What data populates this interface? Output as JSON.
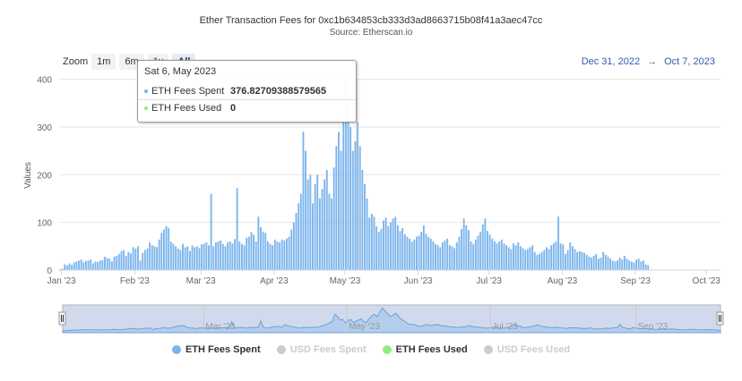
{
  "chart_data": {
    "type": "bar",
    "title": "Ether Transaction Fees for 0xc1b634853cb333d3ad8663715b08f41a3aec47cc",
    "subtitle": "Source: Etherscan.io",
    "ylabel": "Values",
    "ylim": [
      0,
      420
    ],
    "yticks": [
      "0",
      "100",
      "200",
      "300",
      "400"
    ],
    "xticks": [
      "Jan '23",
      "Feb '23",
      "Mar '23",
      "Apr '23",
      "May '23",
      "Jun '23",
      "Jul '23",
      "Aug '23",
      "Sep '23",
      "Oct '23"
    ],
    "x_start": "2022-12-31",
    "x_end": "2023-10-07",
    "bar_color": "#7cb5ec",
    "series": [
      {
        "name": "ETH Fees Spent",
        "values": [
          2,
          3,
          12,
          10,
          14,
          11,
          16,
          18,
          20,
          22,
          16,
          19,
          20,
          22,
          14,
          18,
          17,
          20,
          21,
          28,
          25,
          24,
          18,
          28,
          30,
          34,
          40,
          42,
          30,
          38,
          35,
          48,
          45,
          50,
          20,
          36,
          42,
          45,
          58,
          52,
          50,
          48,
          64,
          78,
          85,
          92,
          88,
          60,
          55,
          50,
          45,
          42,
          55,
          48,
          50,
          40,
          52,
          48,
          50,
          46,
          54,
          55,
          58,
          52,
          160,
          50,
          58,
          60,
          62,
          55,
          50,
          58,
          60,
          56,
          65,
          172,
          60,
          55,
          52,
          68,
          70,
          80,
          74,
          60,
          112,
          90,
          80,
          78,
          60,
          55,
          52,
          64,
          60,
          58,
          64,
          62,
          66,
          70,
          85,
          100,
          120,
          140,
          160,
          290,
          250,
          190,
          200,
          140,
          180,
          200,
          150,
          170,
          190,
          210,
          160,
          150,
          215,
          260,
          290,
          250,
          320,
          400,
          350,
          300,
          250,
          270,
          310,
          260,
          210,
          180,
          150,
          110,
          118,
          112,
          92,
          80,
          86,
          104,
          110,
          92,
          100,
          108,
          112,
          94,
          82,
          88,
          75,
          70,
          66,
          60,
          64,
          70,
          72,
          80,
          94,
          76,
          70,
          66,
          60,
          55,
          52,
          48,
          58,
          62,
          66,
          52,
          50,
          46,
          58,
          70,
          86,
          108,
          94,
          84,
          60,
          55,
          64,
          72,
          80,
          96,
          108,
          82,
          74,
          66,
          60,
          56,
          60,
          64,
          56,
          52,
          48,
          44,
          56,
          52,
          58,
          50,
          46,
          42,
          44,
          48,
          52,
          38,
          32,
          34,
          38,
          42,
          48,
          44,
          52,
          56,
          60,
          112,
          56,
          54,
          34,
          42,
          58,
          50,
          44,
          38,
          40,
          38,
          36,
          32,
          28,
          26,
          30,
          34,
          24,
          26,
          38,
          32,
          28,
          24,
          20,
          18,
          20,
          26,
          22,
          30,
          24,
          20,
          18,
          16,
          22,
          24,
          18,
          20,
          12,
          10
        ]
      },
      {
        "name": "ETH Fees Used",
        "values": []
      }
    ],
    "legend": [
      "ETH Fees Spent",
      "USD Fees Spent",
      "ETH Fees Used",
      "USD Fees Used"
    ],
    "legend_colors": [
      "#7cb5ec",
      "#cccccc",
      "#90ed7d",
      "#cccccc"
    ],
    "legend_hidden": [
      false,
      true,
      false,
      true
    ],
    "legend_placement": "bottom-center",
    "grid": true
  },
  "zoom": {
    "label": "Zoom",
    "buttons": [
      "1m",
      "6m",
      "1y",
      "All"
    ],
    "active": "All"
  },
  "range": {
    "from": "Dec 31, 2022",
    "arrow": "→",
    "to": "Oct 7, 2023"
  },
  "navigator": {
    "ticks": [
      "Mar '23",
      "May '23",
      "Jul '23",
      "Sep '23"
    ]
  },
  "tooltip": {
    "date": "Sat 6, May 2023",
    "rows": [
      {
        "label": "ETH Fees Spent",
        "value": "376.82709388579565",
        "color": "#7cb5ec"
      },
      {
        "label": "ETH Fees Used",
        "value": "0",
        "color": "#90ed7d"
      }
    ]
  }
}
